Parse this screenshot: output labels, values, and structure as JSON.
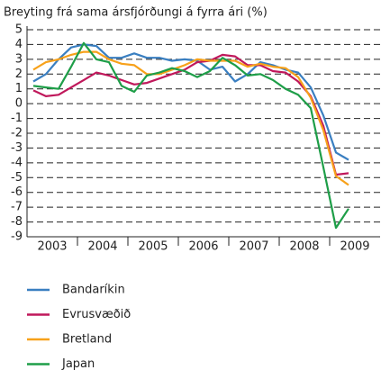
{
  "chart_data": {
    "type": "line",
    "title": "Breyting frá sama ársfjórðungi á fyrra ári (%)",
    "categories": [
      "2003",
      null,
      null,
      null,
      "2004",
      null,
      null,
      null,
      "2005",
      null,
      null,
      null,
      "2006",
      null,
      null,
      null,
      "2007",
      null,
      null,
      null,
      "2008",
      null,
      null,
      null,
      "2009",
      null,
      null,
      null
    ],
    "series": [
      {
        "name": "Bandaríkin",
        "color": "#3a7fc1",
        "values": [
          1.5,
          2.0,
          3.0,
          3.8,
          4.0,
          3.9,
          3.1,
          3.1,
          3.4,
          3.1,
          3.1,
          2.9,
          3.0,
          2.9,
          2.3,
          2.5,
          1.5,
          2.0,
          2.8,
          2.6,
          2.3,
          2.1,
          1.1,
          -0.8,
          -3.3,
          -3.8,
          null,
          null
        ]
      },
      {
        "name": "Evrusvæðið",
        "color": "#c0185b",
        "values": [
          0.9,
          0.5,
          0.6,
          1.1,
          1.6,
          2.1,
          1.9,
          1.6,
          1.3,
          1.4,
          1.7,
          2.0,
          2.3,
          2.8,
          2.9,
          3.3,
          3.2,
          2.6,
          2.6,
          2.2,
          2.1,
          1.5,
          0.5,
          -1.5,
          -4.8,
          -4.7,
          null,
          null
        ]
      },
      {
        "name": "Bretland",
        "color": "#f7a11a",
        "values": [
          2.3,
          2.8,
          3.0,
          3.3,
          3.5,
          3.5,
          3.0,
          2.7,
          2.6,
          2.0,
          2.0,
          2.3,
          2.6,
          3.0,
          2.9,
          2.9,
          2.9,
          2.5,
          2.7,
          2.5,
          2.4,
          1.8,
          0.4,
          -1.8,
          -4.9,
          -5.5,
          null,
          null
        ]
      },
      {
        "name": "Japan",
        "color": "#1e9e48",
        "values": [
          1.2,
          1.1,
          1.0,
          2.5,
          4.1,
          3.0,
          2.8,
          1.2,
          0.8,
          1.9,
          2.1,
          2.4,
          2.2,
          1.8,
          2.2,
          3.1,
          2.6,
          1.9,
          2.0,
          1.6,
          1.0,
          0.6,
          -0.3,
          -4.3,
          -8.4,
          -7.1,
          null,
          null
        ]
      }
    ],
    "ylim": [
      -9,
      5
    ],
    "yticks": [
      -9,
      -8,
      -7,
      -6,
      -5,
      -4,
      -3,
      -2,
      -1,
      0,
      1,
      2,
      3,
      4,
      5
    ],
    "grid": true
  }
}
